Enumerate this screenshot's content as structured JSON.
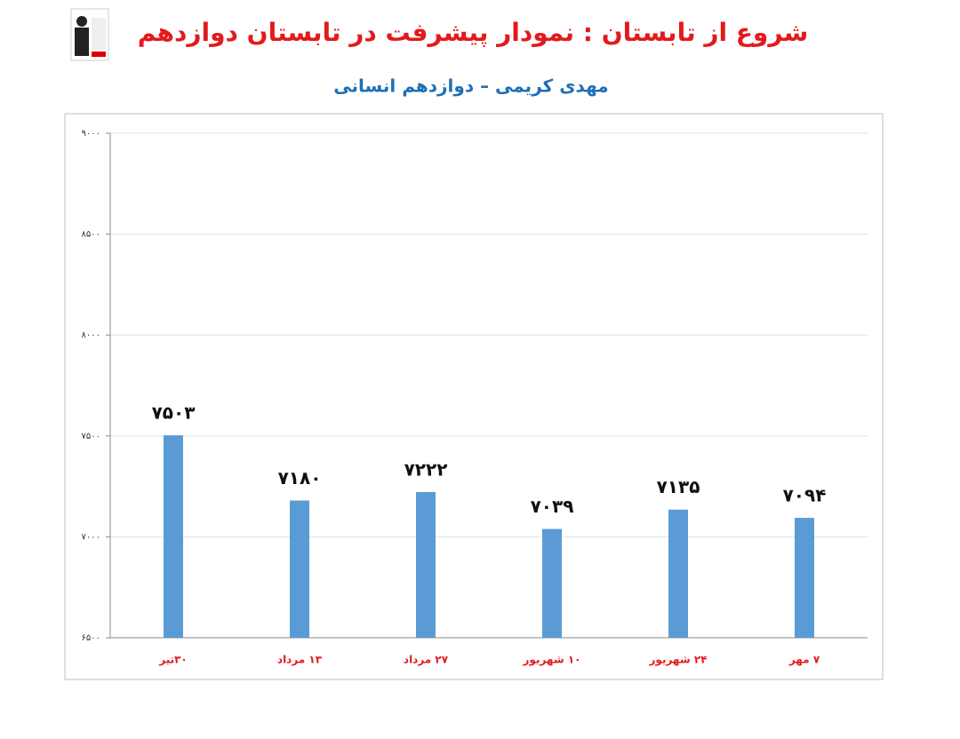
{
  "chart_data": {
    "type": "bar",
    "title": "شروع از تابستان : نمودار پیشرفت در تابستان دوازدهم",
    "subtitle": "مهدی کریمی – دوازدهم انسانی",
    "categories": [
      "۳۰تیر",
      "۱۳ مرداد",
      "۲۷ مرداد",
      "۱۰ شهریور",
      "۲۴ شهریور",
      "۷ مهر"
    ],
    "values": [
      7503,
      7180,
      7222,
      7039,
      7135,
      7094
    ],
    "value_labels": [
      "۷۵۰۳",
      "۷۱۸۰",
      "۷۲۲۲",
      "۷۰۳۹",
      "۷۱۳۵",
      "۷۰۹۴"
    ],
    "color": "#5b9bd5",
    "ylim": [
      6500,
      9000
    ],
    "yticks": [
      {
        "value": 6500,
        "label": "۶۵۰۰"
      },
      {
        "value": 7000,
        "label": "۷۰۰۰"
      },
      {
        "value": 7500,
        "label": "۷۵۰۰"
      },
      {
        "value": 8000,
        "label": "۸۰۰۰"
      },
      {
        "value": 8500,
        "label": "۸۵۰۰"
      },
      {
        "value": 9000,
        "label": "۹۰۰۰"
      }
    ],
    "grid": true
  }
}
